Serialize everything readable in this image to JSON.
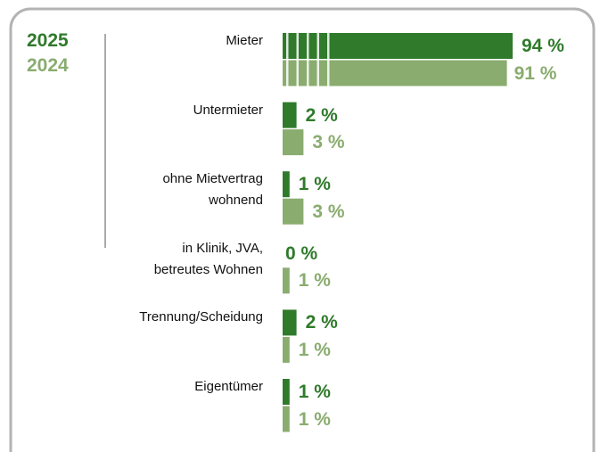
{
  "chart_data": {
    "type": "bar",
    "orientation": "horizontal",
    "categories": [
      "Mieter",
      "Untermieter",
      "ohne Mietvertrag\nwohnend",
      "in Klinik, JVA,\nbetreutes Wohnen",
      "Trennung/Scheidung",
      "Eigentümer"
    ],
    "series": [
      {
        "name": "2025",
        "color": "#2f7a2b",
        "values": [
          94,
          2,
          1,
          0,
          2,
          1
        ],
        "value_labels": [
          "94 %",
          "2 %",
          "1 %",
          "0 %",
          "2 %",
          "1 %"
        ]
      },
      {
        "name": "2024",
        "color": "#8aac6f",
        "values": [
          91,
          3,
          3,
          1,
          1,
          1
        ],
        "value_labels": [
          "91 %",
          "3 %",
          "3 %",
          "1 %",
          "1 %",
          "1 %"
        ]
      }
    ]
  }
}
